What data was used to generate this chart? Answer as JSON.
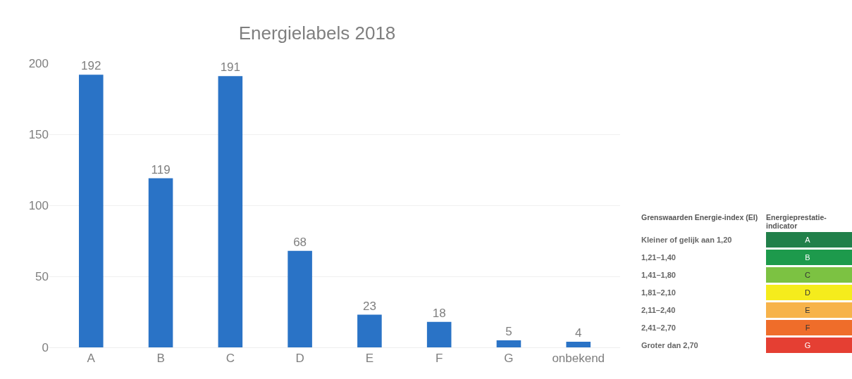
{
  "chart_data": [
    {
      "type": "bar",
      "title": "Energielabels 2018",
      "categories": [
        "A",
        "B",
        "C",
        "D",
        "E",
        "F",
        "G",
        "onbekend"
      ],
      "values": [
        192,
        119,
        191,
        68,
        23,
        18,
        5,
        4
      ],
      "color": "#2a73c6",
      "ylim": [
        0,
        200
      ],
      "yticks": [
        0,
        50,
        100,
        150,
        200
      ],
      "grid": "y",
      "data_labels": true
    },
    {
      "type": "other",
      "annotations": [
        "Grenswaarden Energie-index (EI)",
        "Energieprestatie-indicator",
        "Kleiner of gelijk aan 1,20",
        "1,21–1,40",
        "1,41–1,80",
        "1,81–2,10",
        "2,11–2,40",
        "2,41–2,70",
        "Groter dan 2,70"
      ],
      "categories": [
        "A",
        "B",
        "C",
        "D",
        "E",
        "F",
        "G"
      ],
      "colors": [
        "#21804a",
        "#1d9a4c",
        "#7cc242",
        "#f5ec1c",
        "#f7b34a",
        "#ef6d2a",
        "#e53f33"
      ]
    }
  ]
}
